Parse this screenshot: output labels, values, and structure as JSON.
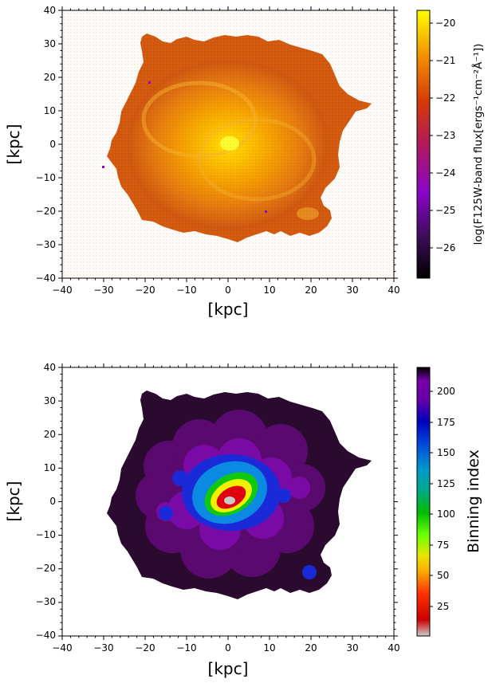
{
  "chart_data": [
    {
      "type": "heatmap",
      "xlabel": "[kpc]",
      "ylabel": "[kpc]",
      "xlim": [
        -40,
        40
      ],
      "ylim": [
        -40,
        40
      ],
      "xticks": [
        "−40",
        "−30",
        "−20",
        "−10",
        "0",
        "10",
        "20",
        "30",
        "40"
      ],
      "yticks": [
        "40",
        "30",
        "20",
        "10",
        "0",
        "−10",
        "−20",
        "−30",
        "−40"
      ],
      "colorbar": {
        "label": "log(F125W-band flux[ergs⁻¹cm⁻²Å⁻¹])",
        "colormap": "gnuplot",
        "range": [
          -26.8,
          -19.7
        ],
        "ticks": [
          "−20",
          "−21",
          "−22",
          "−23",
          "−24",
          "−25",
          "−26"
        ]
      },
      "colors": {
        "core": "#ffe600",
        "inner": "#ffa800",
        "outer": "#e06a08",
        "edge": "#c44a10"
      }
    },
    {
      "type": "heatmap",
      "xlabel": "[kpc]",
      "ylabel": "[kpc]",
      "xlim": [
        -40,
        40
      ],
      "ylim": [
        -40,
        40
      ],
      "xticks": [
        "−40",
        "−30",
        "−20",
        "−10",
        "0",
        "10",
        "20",
        "30",
        "40"
      ],
      "yticks": [
        "40",
        "30",
        "20",
        "10",
        "0",
        "−10",
        "−20",
        "−30",
        "−40"
      ],
      "colorbar": {
        "label": "Binning index",
        "colormap": "nipy_spectral",
        "range": [
          0,
          218
        ],
        "ticks": [
          "200",
          "175",
          "150",
          "125",
          "100",
          "75",
          "50",
          "25"
        ]
      },
      "colors": {
        "outer": "#2a0a2e",
        "ring": "#6a0a8a",
        "blue": "#1a2ad8",
        "cyan": "#0aa0e0",
        "green": "#10c810",
        "yellow": "#f0f000",
        "red": "#e00010",
        "center": "#c8c8c8"
      }
    }
  ]
}
